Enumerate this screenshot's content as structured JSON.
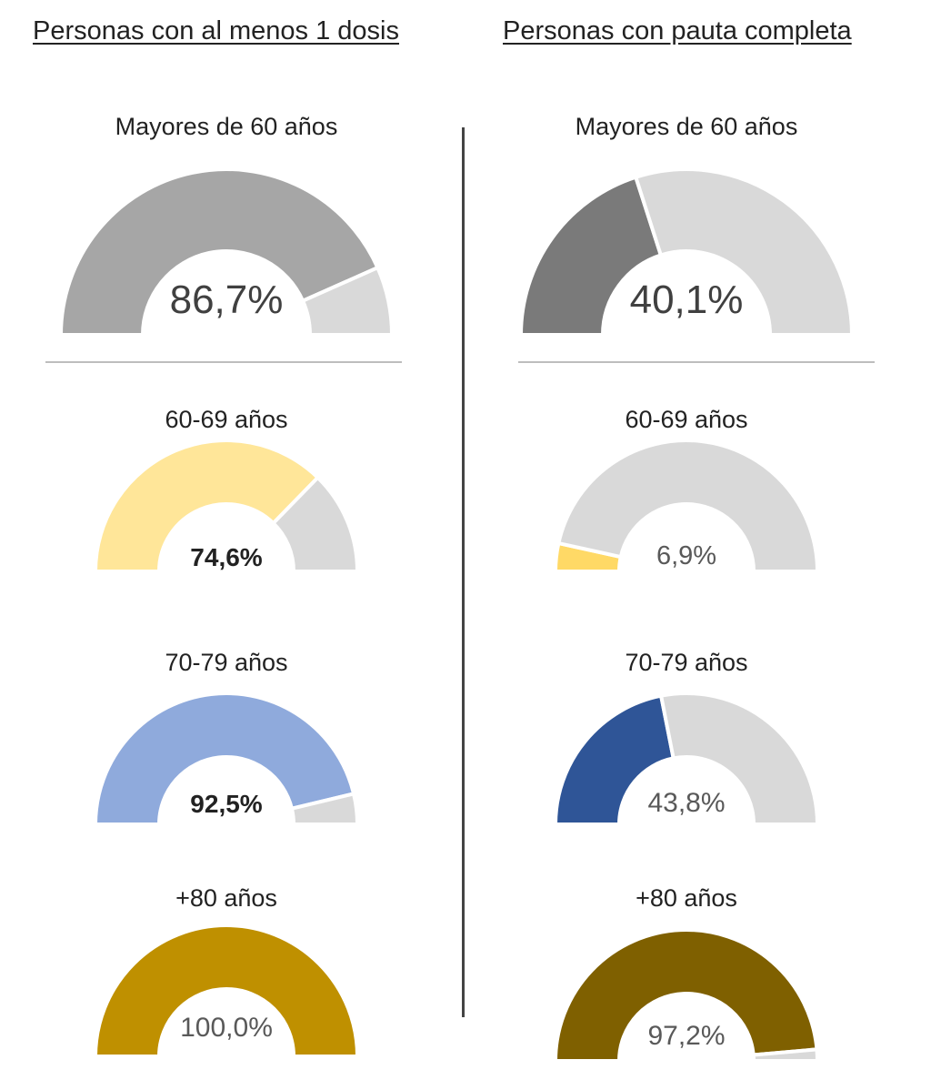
{
  "columns": {
    "left": {
      "title": "Personas con al menos 1 dosis"
    },
    "right": {
      "title": "Personas con pauta completa"
    }
  },
  "chart_data": [
    {
      "type": "pie",
      "variant": "half-donut-gauge",
      "title": "Mayores de 60 años",
      "value_label": "86,7%",
      "value": 86.7,
      "colors": {
        "fill": "#a6a6a6",
        "rest": "#d9d9d9"
      }
    },
    {
      "type": "pie",
      "variant": "half-donut-gauge",
      "title": "60-69 años",
      "value_label": "74,6%",
      "value": 74.6,
      "colors": {
        "fill": "#ffe699",
        "rest": "#d9d9d9"
      }
    },
    {
      "type": "pie",
      "variant": "half-donut-gauge",
      "title": "70-79 años",
      "value_label": "92,5%",
      "value": 92.5,
      "colors": {
        "fill": "#8faadc",
        "rest": "#d9d9d9"
      }
    },
    {
      "type": "pie",
      "variant": "half-donut-gauge",
      "title": "+80 años",
      "value_label": "100,0%",
      "value": 100.0,
      "colors": {
        "fill": "#bf9000",
        "rest": "#d9d9d9"
      }
    },
    {
      "type": "pie",
      "variant": "half-donut-gauge",
      "title": "Mayores de 60 años",
      "value_label": "40,1%",
      "value": 40.1,
      "colors": {
        "fill": "#7a7a7a",
        "rest": "#d9d9d9"
      }
    },
    {
      "type": "pie",
      "variant": "half-donut-gauge",
      "title": "60-69 años",
      "value_label": "6,9%",
      "value": 6.9,
      "colors": {
        "fill": "#ffd966",
        "rest": "#d9d9d9"
      }
    },
    {
      "type": "pie",
      "variant": "half-donut-gauge",
      "title": "70-79 años",
      "value_label": "43,8%",
      "value": 43.8,
      "colors": {
        "fill": "#2f5597",
        "rest": "#d9d9d9"
      }
    },
    {
      "type": "pie",
      "variant": "half-donut-gauge",
      "title": "+80 años",
      "value_label": "97,2%",
      "value": 97.2,
      "colors": {
        "fill": "#7f6000",
        "rest": "#d9d9d9"
      }
    }
  ]
}
